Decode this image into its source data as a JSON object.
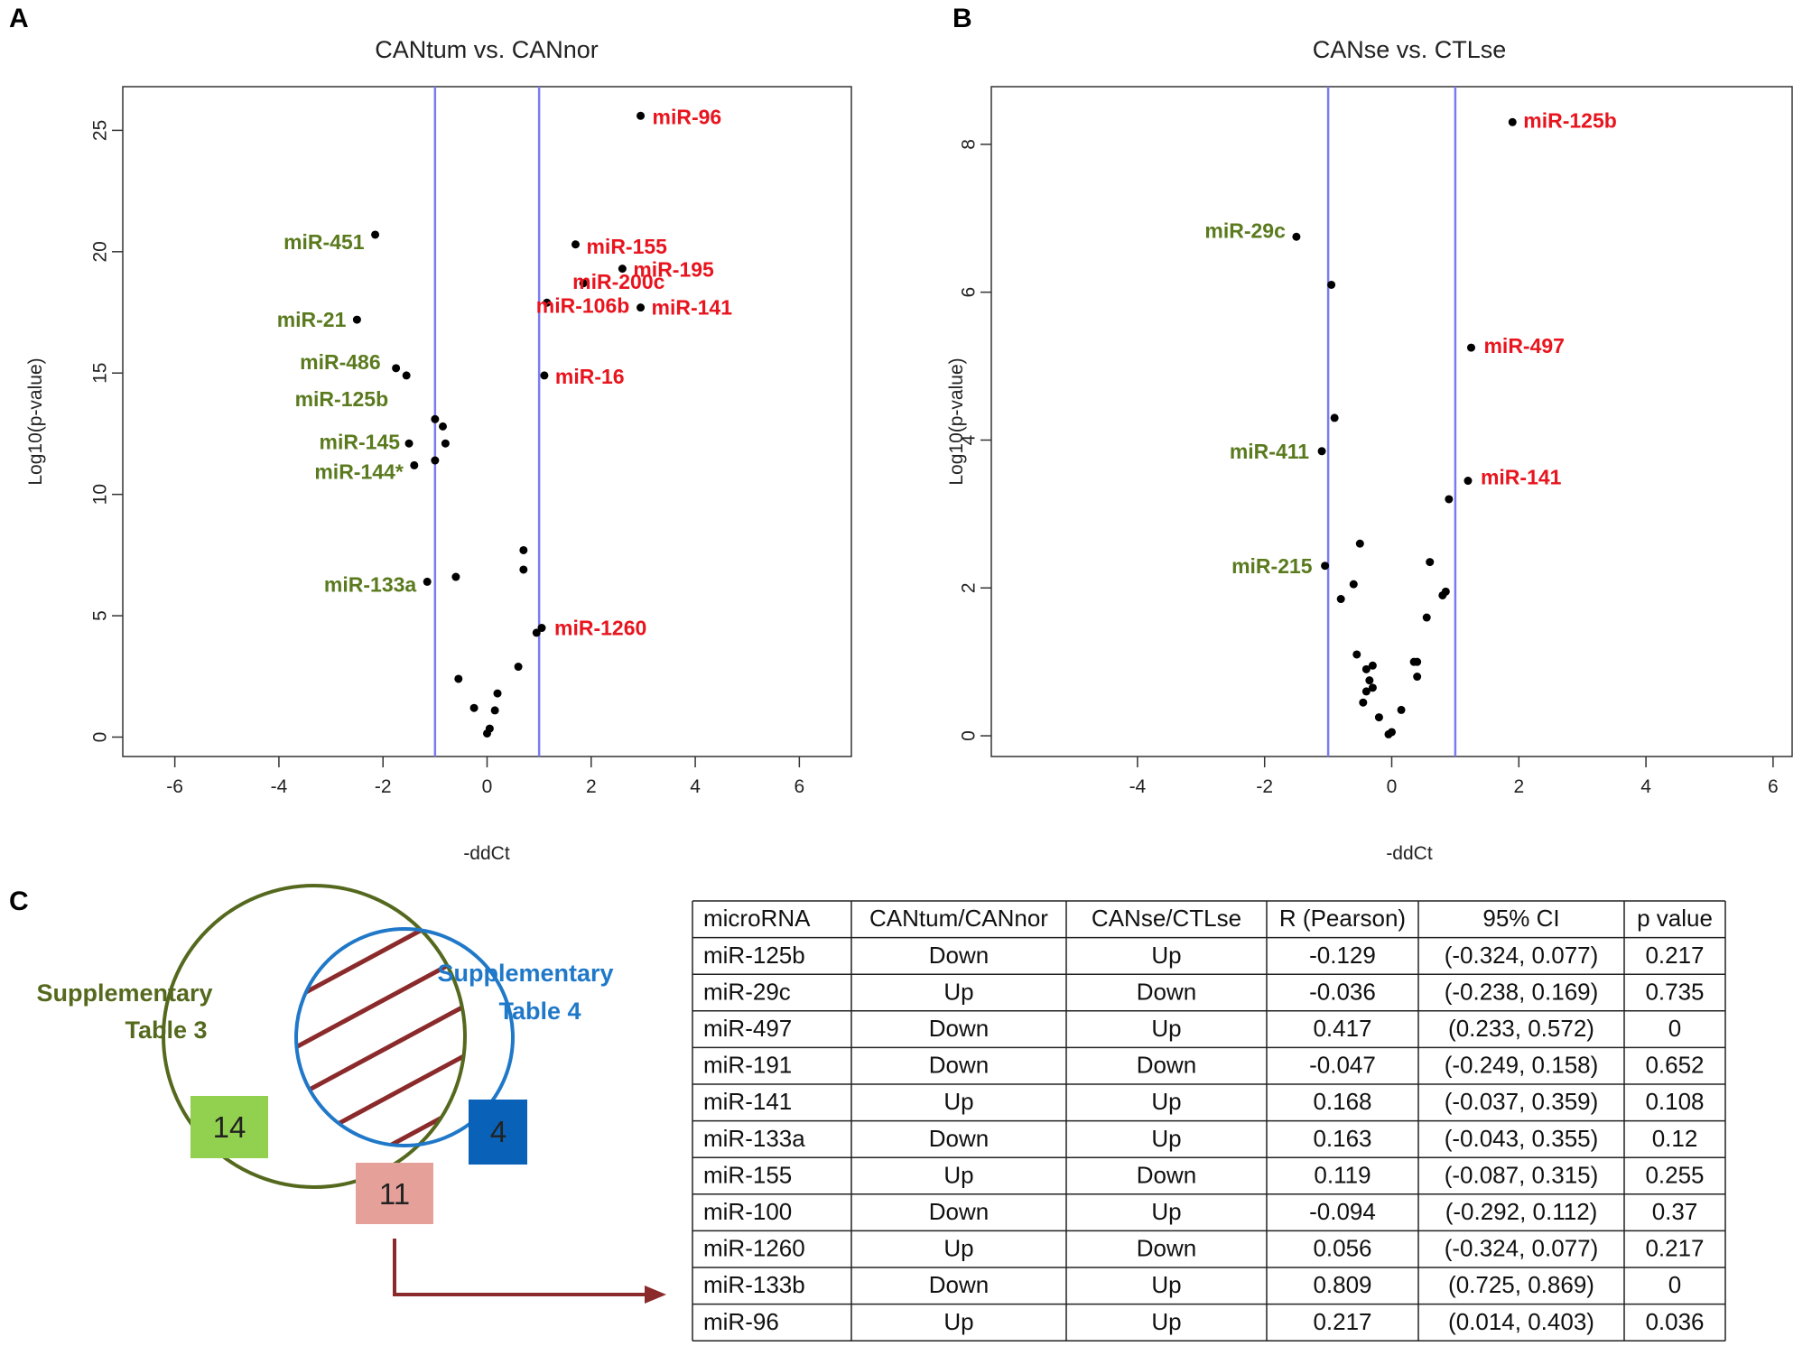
{
  "panels": {
    "A": "A",
    "B": "B",
    "C": "C"
  },
  "chart_data": [
    {
      "type": "scatter",
      "title": "CANtum vs. CANnor",
      "xlabel": "-ddCt",
      "ylabel": "Log10(p-value)",
      "xlim": [
        -7,
        7
      ],
      "ylim": [
        -0.8,
        26.8
      ],
      "xticks": [
        -6,
        -4,
        -2,
        0,
        2,
        4,
        6
      ],
      "yticks": [
        0,
        5,
        10,
        15,
        20,
        25
      ],
      "vlines": [
        -1,
        1
      ],
      "grid": false,
      "colors": {
        "up": "#e8141e",
        "down": "#5a7a1e",
        "vline": "#7b7bf0",
        "point": "#000000"
      },
      "points": [
        {
          "x": 2.95,
          "y": 25.6,
          "label": "miR-96",
          "group": "up"
        },
        {
          "x": -2.15,
          "y": 20.7,
          "label": "miR-451",
          "group": "down"
        },
        {
          "x": 1.7,
          "y": 20.3,
          "label": "miR-155",
          "group": "up"
        },
        {
          "x": 2.6,
          "y": 19.3,
          "label": "miR-195",
          "group": "up"
        },
        {
          "x": 1.85,
          "y": 18.7,
          "label": "miR-200c",
          "group": "up"
        },
        {
          "x": 1.15,
          "y": 17.9,
          "label": "miR-106b",
          "group": "up"
        },
        {
          "x": 2.95,
          "y": 17.7,
          "label": "miR-141",
          "group": "up"
        },
        {
          "x": -2.5,
          "y": 17.2,
          "label": "miR-21",
          "group": "down"
        },
        {
          "x": -1.75,
          "y": 15.2,
          "label": "miR-486",
          "group": "down"
        },
        {
          "x": -1.55,
          "y": 14.9,
          "label": "miR-125b",
          "group": "down"
        },
        {
          "x": 1.1,
          "y": 14.9,
          "label": "miR-16",
          "group": "up"
        },
        {
          "x": -1.0,
          "y": 13.1,
          "label": "",
          "group": ""
        },
        {
          "x": -0.85,
          "y": 12.8,
          "label": "",
          "group": ""
        },
        {
          "x": -0.8,
          "y": 12.1,
          "label": "",
          "group": ""
        },
        {
          "x": -1.5,
          "y": 12.1,
          "label": "miR-145",
          "group": "down"
        },
        {
          "x": -1.0,
          "y": 11.4,
          "label": "",
          "group": ""
        },
        {
          "x": -1.4,
          "y": 11.2,
          "label": "miR-144*",
          "group": "down"
        },
        {
          "x": 0.7,
          "y": 7.7,
          "label": "",
          "group": ""
        },
        {
          "x": 0.7,
          "y": 6.9,
          "label": "",
          "group": ""
        },
        {
          "x": -0.6,
          "y": 6.6,
          "label": "",
          "group": ""
        },
        {
          "x": -1.15,
          "y": 6.4,
          "label": "miR-133a",
          "group": "down"
        },
        {
          "x": 1.05,
          "y": 4.5,
          "label": "miR-1260",
          "group": "up"
        },
        {
          "x": 0.95,
          "y": 4.3,
          "label": "",
          "group": ""
        },
        {
          "x": 0.6,
          "y": 2.9,
          "label": "",
          "group": ""
        },
        {
          "x": -0.55,
          "y": 2.4,
          "label": "",
          "group": ""
        },
        {
          "x": 0.2,
          "y": 1.8,
          "label": "",
          "group": ""
        },
        {
          "x": -0.25,
          "y": 1.2,
          "label": "",
          "group": ""
        },
        {
          "x": 0.15,
          "y": 1.1,
          "label": "",
          "group": ""
        },
        {
          "x": 0.05,
          "y": 0.35,
          "label": "",
          "group": ""
        },
        {
          "x": 0.0,
          "y": 0.15,
          "label": "",
          "group": ""
        }
      ]
    },
    {
      "type": "scatter",
      "title": "CANse vs. CTLse",
      "xlabel": "-ddCt",
      "ylabel": "Log10(p-value)",
      "xlim": [
        -6.3,
        6.3
      ],
      "ylim": [
        -0.28,
        8.78
      ],
      "xticks": [
        -4,
        -2,
        0,
        2,
        4,
        6
      ],
      "yticks": [
        0,
        2,
        4,
        6,
        8
      ],
      "vlines": [
        -1,
        1
      ],
      "grid": false,
      "colors": {
        "up": "#e8141e",
        "down": "#5a7a1e",
        "vline": "#7b7bf0",
        "point": "#000000"
      },
      "points": [
        {
          "x": 1.9,
          "y": 8.3,
          "label": "miR-125b",
          "group": "up"
        },
        {
          "x": -1.5,
          "y": 6.75,
          "label": "miR-29c",
          "group": "down"
        },
        {
          "x": -0.95,
          "y": 6.1,
          "label": "",
          "group": ""
        },
        {
          "x": 1.25,
          "y": 5.25,
          "label": "miR-497",
          "group": "up"
        },
        {
          "x": -0.9,
          "y": 4.3,
          "label": "",
          "group": ""
        },
        {
          "x": -1.1,
          "y": 3.85,
          "label": "miR-411",
          "group": "down"
        },
        {
          "x": 1.2,
          "y": 3.45,
          "label": "miR-141",
          "group": "up"
        },
        {
          "x": 0.9,
          "y": 3.2,
          "label": "",
          "group": ""
        },
        {
          "x": -0.5,
          "y": 2.6,
          "label": "",
          "group": ""
        },
        {
          "x": 0.6,
          "y": 2.35,
          "label": "",
          "group": ""
        },
        {
          "x": -1.05,
          "y": 2.3,
          "label": "miR-215",
          "group": "down"
        },
        {
          "x": -0.6,
          "y": 2.05,
          "label": "",
          "group": ""
        },
        {
          "x": 0.85,
          "y": 1.95,
          "label": "",
          "group": ""
        },
        {
          "x": 0.8,
          "y": 1.9,
          "label": "",
          "group": ""
        },
        {
          "x": -0.8,
          "y": 1.85,
          "label": "",
          "group": ""
        },
        {
          "x": 0.55,
          "y": 1.6,
          "label": "",
          "group": ""
        },
        {
          "x": -0.55,
          "y": 1.1,
          "label": "",
          "group": ""
        },
        {
          "x": 0.35,
          "y": 1.0,
          "label": "",
          "group": ""
        },
        {
          "x": 0.4,
          "y": 1.0,
          "label": "",
          "group": ""
        },
        {
          "x": -0.3,
          "y": 0.95,
          "label": "",
          "group": ""
        },
        {
          "x": -0.4,
          "y": 0.9,
          "label": "",
          "group": ""
        },
        {
          "x": -0.35,
          "y": 0.75,
          "label": "",
          "group": ""
        },
        {
          "x": 0.4,
          "y": 0.8,
          "label": "",
          "group": ""
        },
        {
          "x": -0.3,
          "y": 0.65,
          "label": "",
          "group": ""
        },
        {
          "x": -0.4,
          "y": 0.6,
          "label": "",
          "group": ""
        },
        {
          "x": -0.45,
          "y": 0.45,
          "label": "",
          "group": ""
        },
        {
          "x": 0.15,
          "y": 0.35,
          "label": "",
          "group": ""
        },
        {
          "x": -0.2,
          "y": 0.25,
          "label": "",
          "group": ""
        },
        {
          "x": 0.0,
          "y": 0.05,
          "label": "",
          "group": ""
        },
        {
          "x": -0.05,
          "y": 0.02,
          "label": "",
          "group": ""
        }
      ]
    },
    {
      "type": "table",
      "columns": [
        "microRNA",
        "CANtum/CANnor",
        "CANse/CTLse",
        "R (Pearson)",
        "95% CI",
        "p value"
      ],
      "rows": [
        [
          "miR-125b",
          "Down",
          "Up",
          "-0.129",
          "(-0.324, 0.077)",
          "0.217"
        ],
        [
          "miR-29c",
          "Up",
          "Down",
          "-0.036",
          "(-0.238, 0.169)",
          "0.735"
        ],
        [
          "miR-497",
          "Down",
          "Up",
          "0.417",
          "(0.233, 0.572)",
          "0"
        ],
        [
          "miR-191",
          "Down",
          "Down",
          "-0.047",
          "(-0.249, 0.158)",
          "0.652"
        ],
        [
          "miR-141",
          "Up",
          "Up",
          "0.168",
          "(-0.037, 0.359)",
          "0.108"
        ],
        [
          "miR-133a",
          "Down",
          "Up",
          "0.163",
          "(-0.043, 0.355)",
          "0.12"
        ],
        [
          "miR-155",
          "Up",
          "Down",
          "0.119",
          "(-0.087, 0.315)",
          "0.255"
        ],
        [
          "miR-100",
          "Down",
          "Up",
          "-0.094",
          "(-0.292, 0.112)",
          "0.37"
        ],
        [
          "miR-1260",
          "Up",
          "Down",
          "0.056",
          "(-0.324, 0.077)",
          "0.217"
        ],
        [
          "miR-133b",
          "Down",
          "Up",
          "0.809",
          "(0.725, 0.869)",
          "0"
        ],
        [
          "miR-96",
          "Up",
          "Up",
          "0.217",
          "(0.014, 0.403)",
          "0.036"
        ]
      ]
    }
  ],
  "venn": {
    "left_label_line1": "Supplementary",
    "left_label_line2": "Table 3",
    "right_label_line1": "Supplementary",
    "right_label_line2": "Table 4",
    "left_only": "14",
    "right_only": "4",
    "overlap": "11",
    "colors": {
      "left_circle": "#55691e",
      "right_circle": "#1f78c8",
      "hatch": "#8b2a2a",
      "left_box": "#92d050",
      "right_box": "#0a62b8",
      "overlap_box": "#e6a09a",
      "arrow": "#8b2a2a",
      "left_text": "#55691e",
      "right_text": "#1f78c8"
    }
  }
}
